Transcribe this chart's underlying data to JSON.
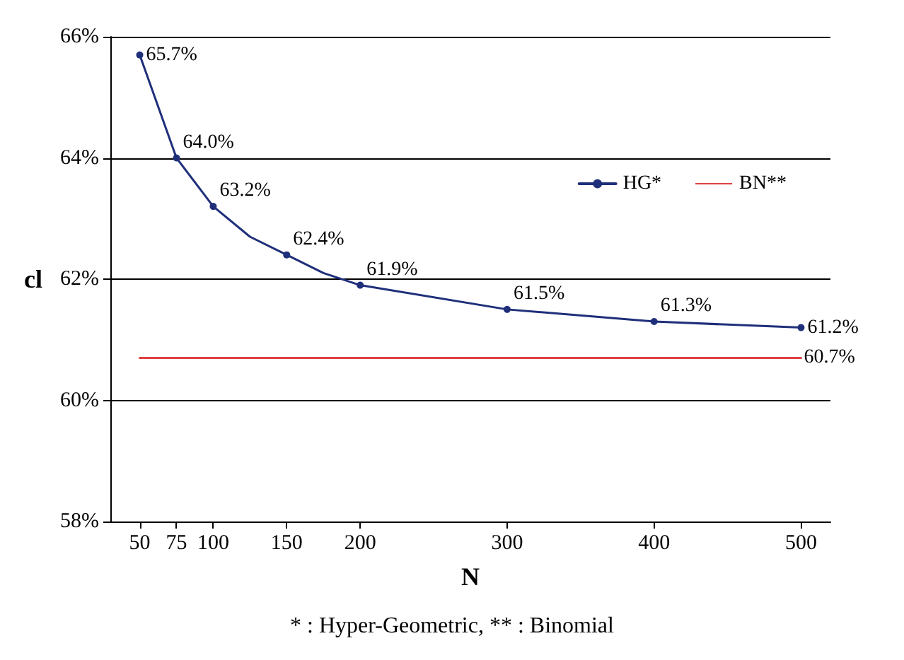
{
  "chart_data": {
    "type": "line",
    "xlabel": "N",
    "ylabel": "cl",
    "xlim": [
      30,
      520
    ],
    "xticks": [
      50,
      75,
      100,
      150,
      200,
      300,
      400,
      500
    ],
    "ylim": [
      58,
      66
    ],
    "yticks": [
      {
        "value": 58,
        "label": "58%"
      },
      {
        "value": 60,
        "label": "60%"
      },
      {
        "value": 62,
        "label": "62%"
      },
      {
        "value": 64,
        "label": "64%"
      },
      {
        "value": 66,
        "label": "66%"
      }
    ],
    "grid": "y",
    "legend": "top right",
    "line_style": "solid",
    "annotations": [
      "* : Hyper-Geometric, ** : Binomial"
    ],
    "series": [
      {
        "name": "HG*",
        "color": "#1f2f7a",
        "marker": "circle",
        "x": [
          50,
          75,
          100,
          125,
          150,
          175,
          200,
          300,
          400,
          500
        ],
        "values": [
          65.7,
          64.0,
          63.2,
          62.7,
          62.4,
          62.1,
          61.9,
          61.5,
          61.3,
          61.2
        ],
        "value_labels": [
          "65.7%",
          "64.0%",
          "63.2%",
          null,
          "62.4%",
          null,
          "61.9%",
          "61.5%",
          "61.3%",
          "61.2%"
        ]
      },
      {
        "name": "BN**",
        "color": "#e04040",
        "marker": "none",
        "x": [
          50,
          500
        ],
        "values": [
          60.7,
          60.7
        ],
        "value_labels": [
          null,
          "60.7%"
        ]
      }
    ]
  }
}
